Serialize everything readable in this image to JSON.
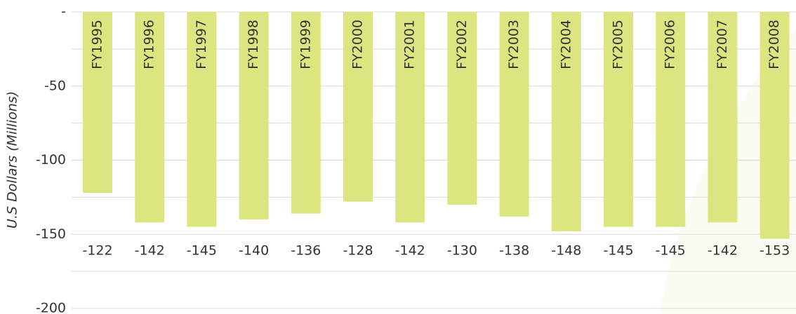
{
  "chart_data": {
    "type": "bar",
    "y_label": "U.S Dollars (Millions)",
    "categories": [
      "FY1995",
      "FY1996",
      "FY1997",
      "FY1998",
      "FY1999",
      "FY2000",
      "FY2001",
      "FY2002",
      "FY2003",
      "FY2004",
      "FY2005",
      "FY2006",
      "FY2007",
      "FY2008"
    ],
    "values": [
      -122,
      -142,
      -145,
      -140,
      -136,
      -128,
      -142,
      -130,
      -138,
      -148,
      -145,
      -145,
      -142,
      -153
    ],
    "color": "#dce681",
    "ylim": [
      0,
      -200
    ],
    "yticks": [
      {
        "value": 0,
        "label": "-"
      },
      -50,
      -100,
      -150,
      -200
    ],
    "minor_yticks": [
      -25,
      -75,
      -125,
      -175
    ],
    "grid": true
  }
}
